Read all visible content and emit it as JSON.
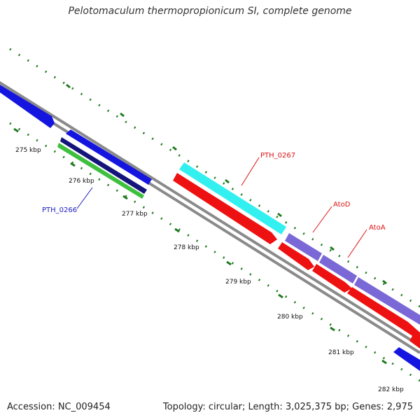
{
  "title": "Pelotomaculum thermopropionicum SI, complete genome",
  "footer": {
    "accession": "Accession: NC_009454",
    "stats": "Topology: circular; Length: 3,025,375 bp; Genes: 2,975"
  },
  "colors": {
    "backbone": "#8a8a8a",
    "tick": "#1f7a1f",
    "blue_gene": "#1515e0",
    "navy_gene": "#14147a",
    "green_gene": "#3ec03e",
    "cyan_gene": "#33f0f0",
    "red_gene": "#ee1111",
    "purple_gene": "#7a68d6",
    "label_blue": "#1a1ac8",
    "label_red": "#dd1111"
  },
  "tick_labels": [
    "275 kbp",
    "276 kbp",
    "277 kbp",
    "278 kbp",
    "279 kbp",
    "280 kbp",
    "281 kbp",
    "282 kbp"
  ],
  "gene_labels": {
    "pth_0266": "PTH_0266",
    "pth_0267": "PTH_0267",
    "atod": "AtoD",
    "atoa": "AtoA"
  }
}
